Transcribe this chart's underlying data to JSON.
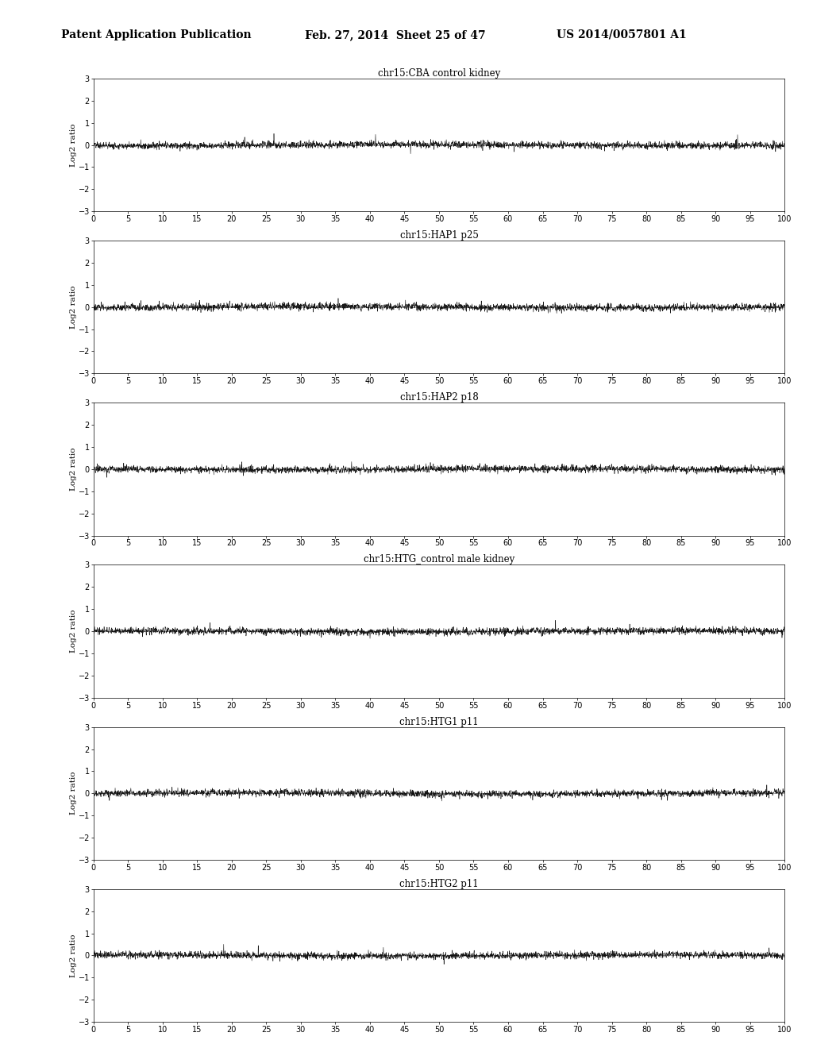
{
  "header_left": "Patent Application Publication",
  "header_mid": "Feb. 27, 2014  Sheet 25 of 47",
  "header_right": "US 2014/0057801 A1",
  "plots": [
    {
      "title": "chr15:CBA control kidney"
    },
    {
      "title": "chr15:HAP1 p25"
    },
    {
      "title": "chr15:HAP2 p18"
    },
    {
      "title": "chr15:HTG_control male kidney"
    },
    {
      "title": "chr15:HTG1 p11"
    },
    {
      "title": "chr15:HTG2 p11"
    }
  ],
  "ylabel": "Log2 ratio",
  "xlim": [
    0,
    100
  ],
  "ylim": [
    -3,
    3
  ],
  "xticks": [
    0,
    5,
    10,
    15,
    20,
    25,
    30,
    35,
    40,
    45,
    50,
    55,
    60,
    65,
    70,
    75,
    80,
    85,
    90,
    95,
    100
  ],
  "yticks": [
    -3,
    -2,
    -1,
    0,
    1,
    2,
    3
  ],
  "bg_color": "#ffffff",
  "line_color": "#000000",
  "header_fontsize": 10,
  "title_fontsize": 8.5,
  "tick_fontsize": 7,
  "ylabel_fontsize": 7.5
}
